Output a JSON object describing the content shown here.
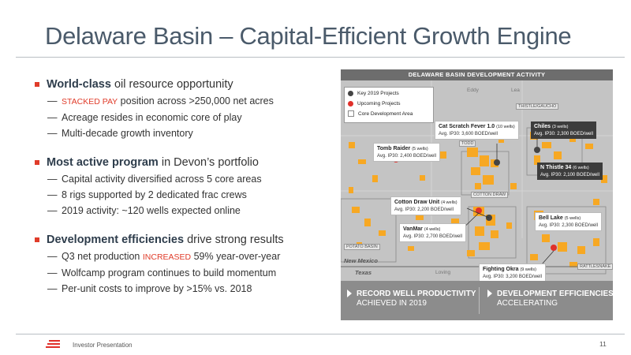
{
  "slide": {
    "title": "Delaware Basin – Capital-Efficient Growth Engine",
    "footer": "Investor Presentation",
    "page_number": "11"
  },
  "bullets": [
    {
      "bold": "World-class",
      "rest": " oil resource opportunity",
      "subs": [
        {
          "red": "STACKED PAY",
          "text": " position across >250,000 net acres"
        },
        {
          "red": "",
          "text": "Acreage resides in economic core of play"
        },
        {
          "red": "",
          "text": "Multi-decade growth inventory"
        }
      ]
    },
    {
      "bold": "Most active program",
      "rest": " in Devon’s portfolio",
      "subs": [
        {
          "red": "",
          "text": "Capital activity diversified across 5 core areas"
        },
        {
          "red": "",
          "text": "8 rigs supported by 2 dedicated frac crews"
        },
        {
          "red": "",
          "text": "2019 activity: ~120 wells expected online"
        }
      ]
    },
    {
      "bold": "Development efficiencies",
      "rest": " drive strong results",
      "subs": [
        {
          "pre": "Q3 net production ",
          "red": "INCREASED",
          "text": " 59% year-over-year"
        },
        {
          "red": "",
          "text": "Wolfcamp program continues to build momentum"
        },
        {
          "red": "",
          "text": "Per-unit costs to improve by >15% vs. 2018"
        }
      ]
    }
  ],
  "map": {
    "header": "DELAWARE BASIN DEVELOPMENT ACTIVITY",
    "legend": [
      "Key 2019 Projects",
      "Upcoming Projects",
      "Core Development Area"
    ],
    "colors": {
      "acreage": "#f7a823",
      "project_dot": "#e0302a",
      "key_dot": "#444444"
    },
    "places": [
      "Eddy",
      "Lea",
      "Loving"
    ],
    "area_tags": [
      "THISTLE/GAUCHO",
      "TODD",
      "COTTON DRAW",
      "POTATO BASIN",
      "RATTLESNAKE"
    ],
    "states": [
      "New Mexico",
      "Texas"
    ],
    "callouts": [
      {
        "name": "Cat Scratch Fever 1.0",
        "wells": "(10 wells)",
        "rate": "Avg. IP30: 3,600 BOED/well"
      },
      {
        "name": "Chiles",
        "wells": "(3 wells)",
        "rate": "Avg. IP30: 2,300 BOED/well"
      },
      {
        "name": "Tomb Raider",
        "wells": "(5 wells)",
        "rate": "Avg. IP30: 2,400 BOED/well"
      },
      {
        "name": "N Thistle 34",
        "wells": "(6 wells)",
        "rate": "Avg. IP30: 2,100 BOED/well"
      },
      {
        "name": "Cotton Draw Unit",
        "wells": "(4 wells)",
        "rate": "Avg. IP30: 2,200 BOED/well"
      },
      {
        "name": "Bell Lake",
        "wells": "(5 wells)",
        "rate": "Avg. IP30: 2,300 BOED/well"
      },
      {
        "name": "VanMar",
        "wells": "(4 wells)",
        "rate": "Avg. IP30: 2,700 BOED/well"
      },
      {
        "name": "Fighting Okra",
        "wells": "(9 wells)",
        "rate": "Avg. IP30: 3,200 BOED/well"
      }
    ],
    "footer": [
      {
        "bold": "RECORD WELL PRODUCTIVITY",
        "text": "ACHIEVED IN 2019"
      },
      {
        "bold": "DEVELOPMENT EFFICIENCIES",
        "text": "ACCELERATING"
      }
    ]
  }
}
